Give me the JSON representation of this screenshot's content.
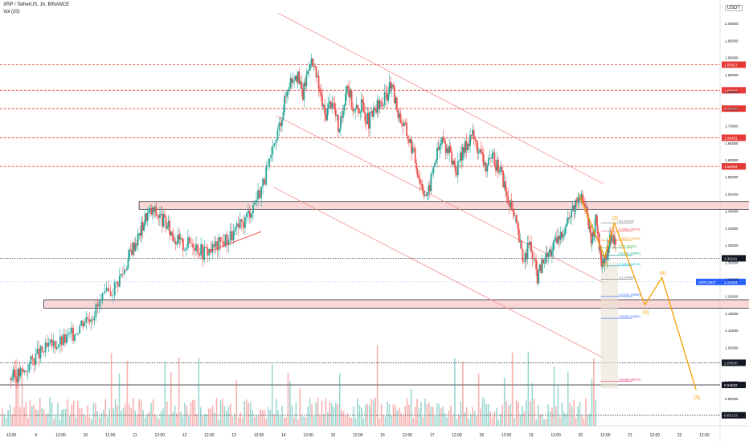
{
  "header": {
    "symbol_line": "XRP / TetherUS, 1h, BINANCE",
    "indicator_line": "Vol (20)",
    "currency": "USDT"
  },
  "colors": {
    "up": "#26a69a",
    "down": "#ef5350",
    "level": "#e53935",
    "wave": "#f59f00",
    "channel": "#f28b8b",
    "box": "#f7c9c9",
    "price_tag": "#2962ff"
  },
  "chart_data": {
    "type": "candlestick",
    "title": "",
    "ylim": [
      0.82,
      2.05
    ],
    "y_ticks": [
      "2.00000",
      "1.95000",
      "1.90000",
      "1.85000",
      "1.80000",
      "1.75000",
      "1.70000",
      "1.65000",
      "1.60000",
      "1.55000",
      "1.50000",
      "1.45000",
      "1.40000",
      "1.35000",
      "1.30000",
      "1.25000",
      "1.20000",
      "1.15000",
      "1.10000",
      "1.05000",
      "1.00000",
      "0.95000",
      "0.90000",
      "0.85000"
    ],
    "x_ticks": [
      "12:00",
      "9",
      "12:00",
      "10",
      "12:00",
      "11",
      "12:00",
      "12",
      "12:00",
      "13",
      "12:00",
      "14",
      "12:00",
      "15",
      "12:00",
      "16",
      "12:00",
      "17",
      "12:00",
      "18",
      "12:00",
      "19",
      "12:00",
      "20",
      "12:00",
      "21",
      "12:00",
      "22",
      "12:00"
    ],
    "price_path": [
      [
        0,
        0.96
      ],
      [
        0.3,
        0.97
      ],
      [
        0.6,
        0.98
      ],
      [
        1.0,
        1.02
      ],
      [
        1.4,
        1.04
      ],
      [
        1.8,
        1.06
      ],
      [
        2.2,
        1.07
      ],
      [
        2.6,
        1.09
      ],
      [
        3.0,
        1.13
      ],
      [
        3.4,
        1.15
      ],
      [
        3.8,
        1.19
      ],
      [
        4.3,
        1.23
      ],
      [
        4.7,
        1.28
      ],
      [
        5.0,
        1.34
      ],
      [
        5.3,
        1.38
      ],
      [
        5.6,
        1.44
      ],
      [
        5.9,
        1.45
      ],
      [
        6.2,
        1.43
      ],
      [
        6.5,
        1.4
      ],
      [
        6.8,
        1.37
      ],
      [
        7.1,
        1.35
      ],
      [
        7.5,
        1.36
      ],
      [
        7.9,
        1.33
      ],
      [
        8.3,
        1.34
      ],
      [
        8.7,
        1.36
      ],
      [
        9.1,
        1.38
      ],
      [
        9.5,
        1.41
      ],
      [
        9.9,
        1.46
      ],
      [
        10.3,
        1.52
      ],
      [
        10.7,
        1.6
      ],
      [
        11.1,
        1.72
      ],
      [
        11.4,
        1.82
      ],
      [
        11.7,
        1.86
      ],
      [
        12.0,
        1.79
      ],
      [
        12.3,
        1.9
      ],
      [
        12.6,
        1.83
      ],
      [
        12.9,
        1.73
      ],
      [
        13.2,
        1.78
      ],
      [
        13.5,
        1.68
      ],
      [
        13.8,
        1.83
      ],
      [
        14.1,
        1.74
      ],
      [
        14.4,
        1.76
      ],
      [
        14.7,
        1.71
      ],
      [
        15.0,
        1.75
      ],
      [
        15.3,
        1.77
      ],
      [
        15.6,
        1.82
      ],
      [
        15.9,
        1.74
      ],
      [
        16.2,
        1.69
      ],
      [
        16.5,
        1.63
      ],
      [
        16.8,
        1.54
      ],
      [
        17.1,
        1.49
      ],
      [
        17.4,
        1.6
      ],
      [
        17.7,
        1.66
      ],
      [
        18.0,
        1.62
      ],
      [
        18.3,
        1.57
      ],
      [
        18.6,
        1.63
      ],
      [
        18.9,
        1.68
      ],
      [
        19.2,
        1.63
      ],
      [
        19.5,
        1.58
      ],
      [
        19.8,
        1.6
      ],
      [
        20.1,
        1.57
      ],
      [
        20.4,
        1.48
      ],
      [
        20.7,
        1.42
      ],
      [
        21.0,
        1.31
      ],
      [
        21.3,
        1.35
      ],
      [
        21.6,
        1.26
      ],
      [
        21.9,
        1.31
      ],
      [
        22.2,
        1.34
      ],
      [
        22.5,
        1.37
      ],
      [
        22.8,
        1.42
      ],
      [
        23.1,
        1.46
      ],
      [
        23.3,
        1.51
      ],
      [
        23.6,
        1.45
      ],
      [
        23.8,
        1.36
      ],
      [
        24.0,
        1.42
      ],
      [
        24.2,
        1.31
      ],
      [
        24.4,
        1.3
      ],
      [
        24.6,
        1.38
      ],
      [
        24.8,
        1.36
      ]
    ],
    "horizontal_levels": [
      {
        "price": 1.87917,
        "label": "1.87917",
        "style": "dashed"
      },
      {
        "price": 1.80416,
        "label": "1.80416",
        "style": "dashed"
      },
      {
        "price": 1.75036,
        "label": "1.75036",
        "style": "dashed"
      },
      {
        "price": 1.66491,
        "label": "1.66491",
        "style": "dashed"
      },
      {
        "price": 1.58094,
        "label": "1.58094",
        "style": "dashed"
      },
      {
        "price": 1.31141,
        "label": "1.31141",
        "style": "dotted-black"
      },
      {
        "price": 1.0052,
        "label": "1.00520",
        "style": "dotted-black"
      },
      {
        "price": 0.94022,
        "label": "0.94022",
        "style": "solid-black"
      },
      {
        "price": 0.85123,
        "label": "0.85123",
        "style": "dotted-black"
      }
    ],
    "current_price": {
      "price": 1.24224,
      "label": "1.24224",
      "tag": "XRPUSDT"
    },
    "zones": [
      {
        "from_x": 5.3,
        "to_x": 32.6,
        "price_low": 1.455,
        "price_high": 1.478
      },
      {
        "from_x": 1.4,
        "to_x": 32.4,
        "price_low": 1.165,
        "price_high": 1.19
      }
    ],
    "fib_levels": [
      {
        "label": "0(1.41475)",
        "price": 1.41475,
        "color": "#787b86"
      },
      {
        "label": "0.236(1.39112)",
        "price": 1.39112,
        "color": "#f23645"
      },
      {
        "label": "0.382(1.36415)",
        "price": 1.36415,
        "color": "#ff9800"
      },
      {
        "label": "0.5(1.34231)",
        "price": 1.34231,
        "color": "#4caf50"
      },
      {
        "label": "0.618(1.32050)",
        "price": 1.3205,
        "color": "#089981"
      },
      {
        "label": "0.786(1.28944)",
        "price": 1.28944,
        "color": "#00bcd4"
      },
      {
        "label": "1(1.24988)",
        "price": 1.24988,
        "color": "#787b86"
      },
      {
        "label": "1.272(1.19959)",
        "price": 1.19959,
        "color": "#2962ff"
      },
      {
        "label": "1.618(1.13562)",
        "price": 1.13562,
        "color": "#2962ff"
      },
      {
        "label": "2.618(0.95075)",
        "price": 0.95075,
        "color": "#e91e63"
      }
    ],
    "wave_points": [
      {
        "label": "(1)",
        "x": 24.35,
        "price": 1.315
      },
      {
        "label": "(2)",
        "x": 24.75,
        "price": 1.415
      },
      {
        "label": "(3)",
        "x": 26.0,
        "price": 1.175
      },
      {
        "label": "(4)",
        "x": 26.7,
        "price": 1.255
      },
      {
        "label": "(5)",
        "x": 28.1,
        "price": 0.925
      }
    ],
    "wave_path_prices": [
      [
        23.3,
        1.5
      ],
      [
        24.35,
        1.315
      ],
      [
        24.75,
        1.415
      ],
      [
        26.0,
        1.175
      ],
      [
        26.7,
        1.255
      ],
      [
        28.1,
        0.925
      ]
    ],
    "volume_panel": "Vol (20)"
  }
}
